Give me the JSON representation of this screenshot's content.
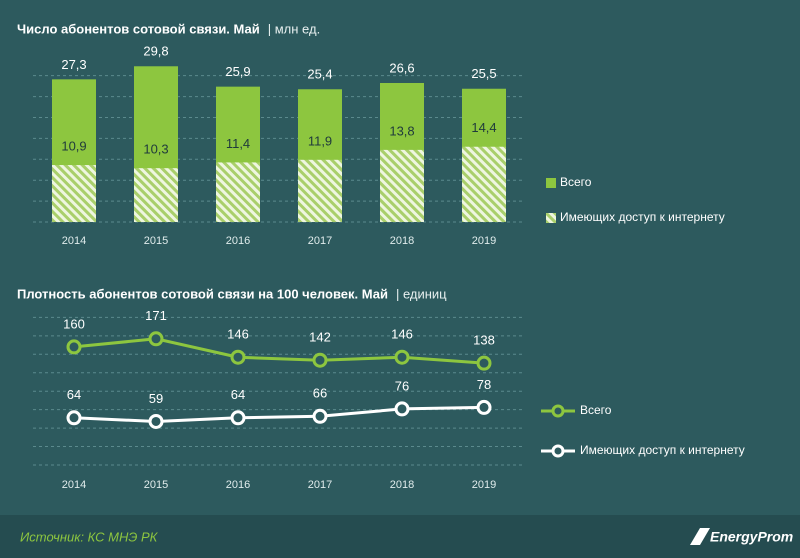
{
  "chart_data": [
    {
      "type": "bar",
      "title": "Число абонентов сотовой связи. Май",
      "subtitle": "| млн ед.",
      "categories": [
        "2014",
        "2015",
        "2016",
        "2017",
        "2018",
        "2019"
      ],
      "series": [
        {
          "name": "Всего",
          "color": "#8dc63f",
          "values": [
            27.3,
            29.8,
            25.9,
            25.4,
            26.6,
            25.5
          ],
          "value_labels": [
            "27,3",
            "29,8",
            "25,9",
            "25,4",
            "26,6",
            "25,5"
          ]
        },
        {
          "name": "Имеющих доступ к интернету",
          "color": "#a9cf6b",
          "hatch": true,
          "values": [
            10.9,
            10.3,
            11.4,
            11.9,
            13.8,
            14.4
          ],
          "value_labels": [
            "10,9",
            "10,3",
            "11,4",
            "11,9",
            "13,8",
            "14,4"
          ]
        }
      ],
      "ylim": [
        0,
        31
      ],
      "yticks": [
        0,
        4,
        8,
        12,
        16,
        20,
        24,
        28
      ],
      "grid": true
    },
    {
      "type": "line",
      "title": "Плотность абонентов сотовой связи на 100 человек. Май",
      "subtitle": "| единиц",
      "categories": [
        "2014",
        "2015",
        "2016",
        "2017",
        "2018",
        "2019"
      ],
      "series": [
        {
          "name": "Всего",
          "color": "#8dc63f",
          "values": [
            160,
            171,
            146,
            142,
            146,
            138
          ]
        },
        {
          "name": "Имеющих доступ к интернету",
          "color": "#ffffff",
          "values": [
            64,
            59,
            64,
            66,
            76,
            78
          ]
        }
      ],
      "ylim": [
        0,
        210
      ],
      "yticks": [
        0,
        25,
        50,
        75,
        100,
        125,
        150,
        175,
        200
      ],
      "grid": true
    }
  ],
  "source": "Источник: КС МНЭ РК",
  "logo": "EnergyProm"
}
